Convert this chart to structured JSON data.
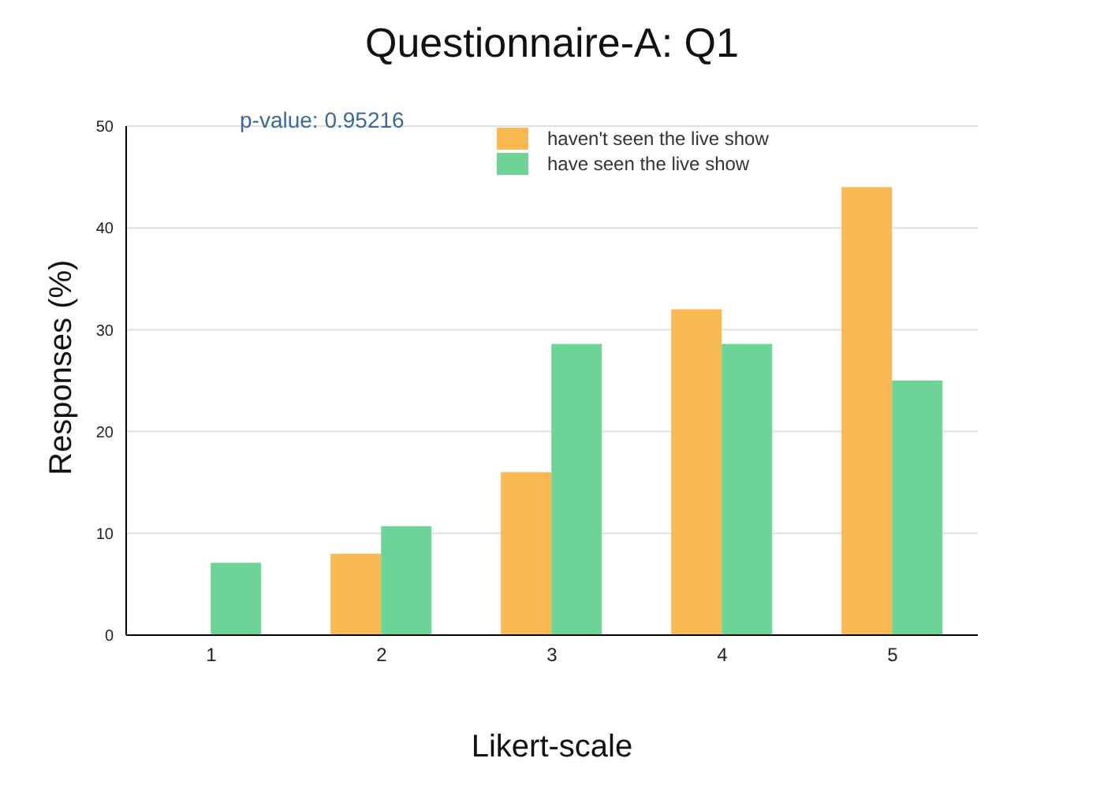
{
  "chart_data": {
    "type": "bar",
    "title": "Questionnaire-A: Q1",
    "xlabel": "Likert-scale",
    "ylabel": "Responses (%)",
    "annotations": [
      "p-value: 0.95216"
    ],
    "categories": [
      "1",
      "2",
      "3",
      "4",
      "5"
    ],
    "series": [
      {
        "name": "haven't seen the live show",
        "color": "#f9b852",
        "values": [
          0,
          8,
          16,
          32,
          44
        ]
      },
      {
        "name": "have seen the live show",
        "color": "#6cd496",
        "values": [
          7.1,
          10.7,
          28.6,
          28.6,
          25
        ]
      }
    ],
    "ylim": [
      0,
      50
    ],
    "yticks": [
      0,
      10,
      20,
      30,
      40,
      50
    ],
    "grid": "y",
    "legend": "top right"
  }
}
